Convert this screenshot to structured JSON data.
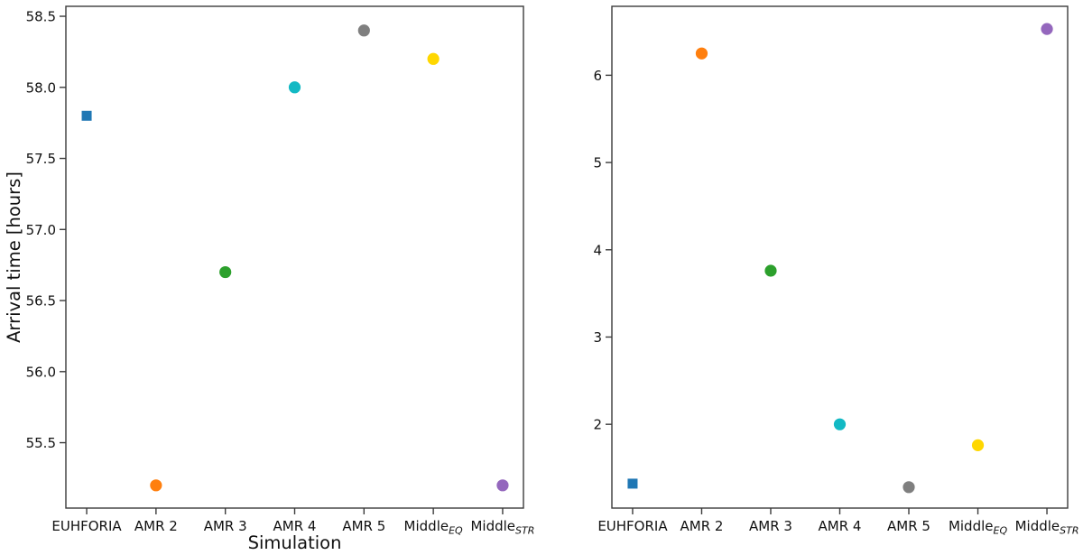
{
  "figure": {
    "background": "#ffffff",
    "axis_color": "#3b3b3b",
    "text_color": "#111111"
  },
  "chart_data": [
    {
      "type": "scatter",
      "panel": "left",
      "title": "",
      "xlabel": "Simulation",
      "ylabel": "Arrival time [hours]",
      "categories": [
        "EUHFORIA",
        "AMR 2",
        "AMR 3",
        "AMR 4",
        "AMR 5",
        "Middle_{EQ}",
        "Middle_{STR}"
      ],
      "values": [
        57.8,
        55.2,
        56.7,
        58.0,
        58.4,
        58.2,
        55.2
      ],
      "markers": [
        "square",
        "circle",
        "circle",
        "circle",
        "circle",
        "circle",
        "circle"
      ],
      "colors": [
        "#1f77b4",
        "#ff7f0e",
        "#2ca02c",
        "#13b9c4",
        "#7f7f7f",
        "#ffd700",
        "#9467bd"
      ],
      "ylim": [
        55.04,
        58.57
      ],
      "yticks": [
        55.5,
        56.0,
        56.5,
        57.0,
        57.5,
        58.0,
        58.5
      ],
      "ytick_labels": [
        "55.5",
        "56.0",
        "56.5",
        "57.0",
        "57.5",
        "58.0",
        "58.5"
      ],
      "grid": false,
      "legend": null
    },
    {
      "type": "scatter",
      "panel": "right",
      "title": "",
      "xlabel": "",
      "ylabel": "",
      "categories": [
        "EUHFORIA",
        "AMR 2",
        "AMR 3",
        "AMR 4",
        "AMR 5",
        "Middle_{EQ}",
        "Middle_{STR}"
      ],
      "values": [
        1.32,
        6.25,
        3.76,
        2.0,
        1.28,
        1.76,
        6.53
      ],
      "markers": [
        "square",
        "circle",
        "circle",
        "circle",
        "circle",
        "circle",
        "circle"
      ],
      "colors": [
        "#1f77b4",
        "#ff7f0e",
        "#2ca02c",
        "#13b9c4",
        "#7f7f7f",
        "#ffd700",
        "#9467bd"
      ],
      "ylim": [
        1.04,
        6.79
      ],
      "yticks": [
        2,
        3,
        4,
        5,
        6
      ],
      "ytick_labels": [
        "2",
        "3",
        "4",
        "5",
        "6"
      ],
      "grid": false,
      "legend": null
    }
  ]
}
